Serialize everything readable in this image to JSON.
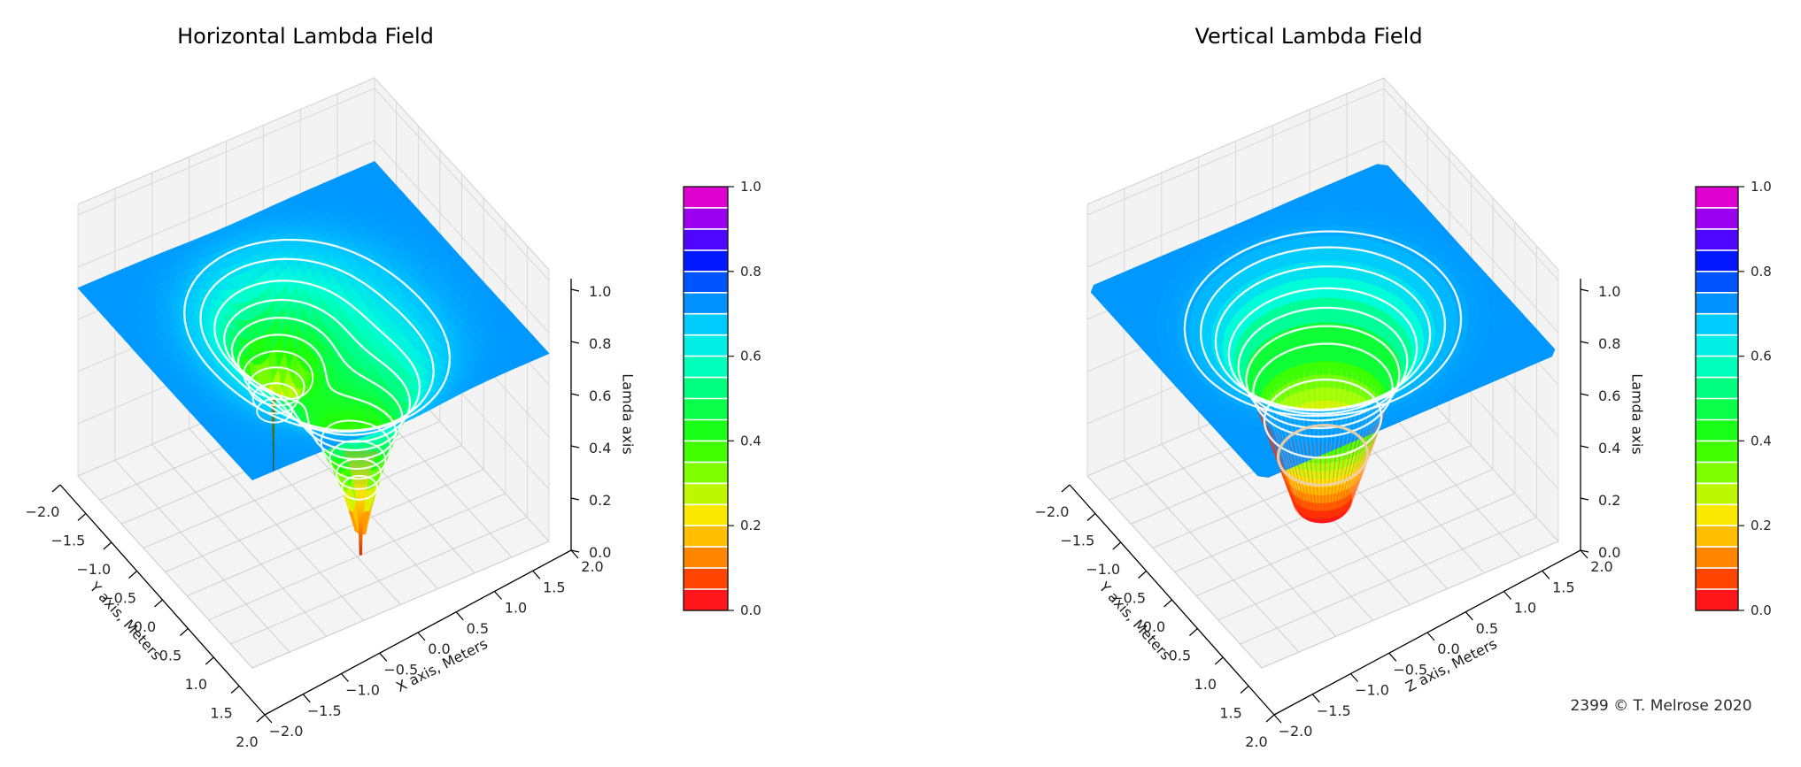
{
  "watermark": "2399  © T. Melrose 2020",
  "chart_data": [
    {
      "type": "surface",
      "title": "Horizontal Lambda Field",
      "xlabel": "X axis, Meters",
      "ylabel": "Y axis, Meters",
      "zlabel": "Lamda axis",
      "xlim": [
        -2,
        2
      ],
      "ylim": [
        -2,
        2
      ],
      "zlim": [
        0,
        1
      ],
      "xticks": [
        -2,
        -1.5,
        -1,
        -0.5,
        0,
        0.5,
        1,
        1.5,
        2
      ],
      "xtick_labels": [
        "−2.0",
        "−1.5",
        "−1.0",
        "−0.5",
        "0.0",
        "0.5",
        "1.0",
        "1.5",
        "2.0"
      ],
      "yticks": [
        -2,
        -1.5,
        -1,
        -0.5,
        0,
        0.5,
        1,
        1.5,
        2
      ],
      "ytick_labels": [
        "−2.0",
        "−1.5",
        "−1.0",
        "−0.5",
        "0.0",
        "0.5",
        "1.0",
        "1.5",
        "2.0"
      ],
      "zticks": [
        0,
        0.2,
        0.4,
        0.6,
        0.8,
        1.0
      ],
      "ztick_labels": [
        "0.0",
        "0.2",
        "0.4",
        "0.6",
        "0.8",
        "1.0"
      ],
      "grid": true,
      "colormap": {
        "name": "gist_rainbow",
        "stops": [
          [
            0.0,
            "#ff0028"
          ],
          [
            0.07,
            "#ff3d00"
          ],
          [
            0.15,
            "#ffa700"
          ],
          [
            0.22,
            "#ffe800"
          ],
          [
            0.3,
            "#9fff00"
          ],
          [
            0.4,
            "#22ff00"
          ],
          [
            0.5,
            "#00ff62"
          ],
          [
            0.6,
            "#00ffd8"
          ],
          [
            0.68,
            "#00c8ff"
          ],
          [
            0.76,
            "#0066ff"
          ],
          [
            0.83,
            "#0011ff"
          ],
          [
            0.9,
            "#7a00ff"
          ],
          [
            1.0,
            "#ff00bf"
          ]
        ]
      },
      "colorbar": {
        "segments": 20,
        "tick_values": [
          0,
          0.2,
          0.4,
          0.6,
          0.8,
          1.0
        ],
        "tick_labels": [
          "0.0",
          "0.2",
          "0.4",
          "0.6",
          "0.8",
          "1.0"
        ]
      },
      "surface": {
        "description": "lambda(x,y) = 0.72·(1 − exp(−1.2·d1·d2)), d1,d2 = distances to the two horizontal singular points where the field drops to 0",
        "amplitude": 0.72,
        "decay": 1.2,
        "singularities": [
          [
            -0.1,
            -0.75
          ],
          [
            0.05,
            1.0
          ]
        ],
        "flat_level": 0.63
      },
      "contour_levels": [
        0.25,
        0.3,
        0.35,
        0.4,
        0.45,
        0.5,
        0.55,
        0.6,
        0.65,
        0.685
      ]
    },
    {
      "type": "surface",
      "title": "Vertical Lambda Field",
      "xlabel": "Z axis, Meters",
      "ylabel": "Y axis, Meters",
      "zlabel": "Lamda axis",
      "xlim": [
        -2,
        2
      ],
      "ylim": [
        -2,
        2
      ],
      "zlim": [
        0,
        1
      ],
      "xticks": [
        -2,
        -1.5,
        -1,
        -0.5,
        0,
        0.5,
        1,
        1.5,
        2
      ],
      "xtick_labels": [
        "−2.0",
        "−1.5",
        "−1.0",
        "−0.5",
        "0.0",
        "0.5",
        "1.0",
        "1.5",
        "2.0"
      ],
      "yticks": [
        -2,
        -1.5,
        -1,
        -0.5,
        0,
        0.5,
        1,
        1.5,
        2
      ],
      "ytick_labels": [
        "−2.0",
        "−1.5",
        "−1.0",
        "−0.5",
        "0.0",
        "0.5",
        "1.0",
        "1.5",
        "2.0"
      ],
      "zticks": [
        0,
        0.2,
        0.4,
        0.6,
        0.8,
        1.0
      ],
      "ztick_labels": [
        "0.0",
        "0.2",
        "0.4",
        "0.6",
        "0.8",
        "1.0"
      ],
      "grid": true,
      "colormap": {
        "name": "gist_rainbow",
        "stops": [
          [
            0.0,
            "#ff0028"
          ],
          [
            0.07,
            "#ff3d00"
          ],
          [
            0.15,
            "#ffa700"
          ],
          [
            0.22,
            "#ffe800"
          ],
          [
            0.3,
            "#9fff00"
          ],
          [
            0.4,
            "#22ff00"
          ],
          [
            0.5,
            "#00ff62"
          ],
          [
            0.6,
            "#00ffd8"
          ],
          [
            0.68,
            "#00c8ff"
          ],
          [
            0.76,
            "#0066ff"
          ],
          [
            0.83,
            "#0011ff"
          ],
          [
            0.9,
            "#7a00ff"
          ],
          [
            1.0,
            "#ff00bf"
          ]
        ]
      },
      "colorbar": {
        "segments": 20,
        "tick_values": [
          0,
          0.2,
          0.4,
          0.6,
          0.8,
          1.0
        ],
        "tick_labels": [
          "0.0",
          "0.2",
          "0.4",
          "0.6",
          "0.8",
          "1.0"
        ]
      },
      "surface": {
        "description": "lambda(ρ) = 0.72·(1 − exp(−1.5·ρ²)) outside the singular cylinder; the field plunges to 0 along the vertical axis line, forming a cylindrical well",
        "amplitude": 0.72,
        "decay": 1.5,
        "cylinder_radius": 0.78,
        "well_floor": 0.012,
        "singular_line": "vertical axis x=0, y=0"
      },
      "contour_levels": [
        0.45,
        0.5,
        0.55,
        0.6,
        0.65,
        0.685,
        0.705
      ]
    }
  ]
}
